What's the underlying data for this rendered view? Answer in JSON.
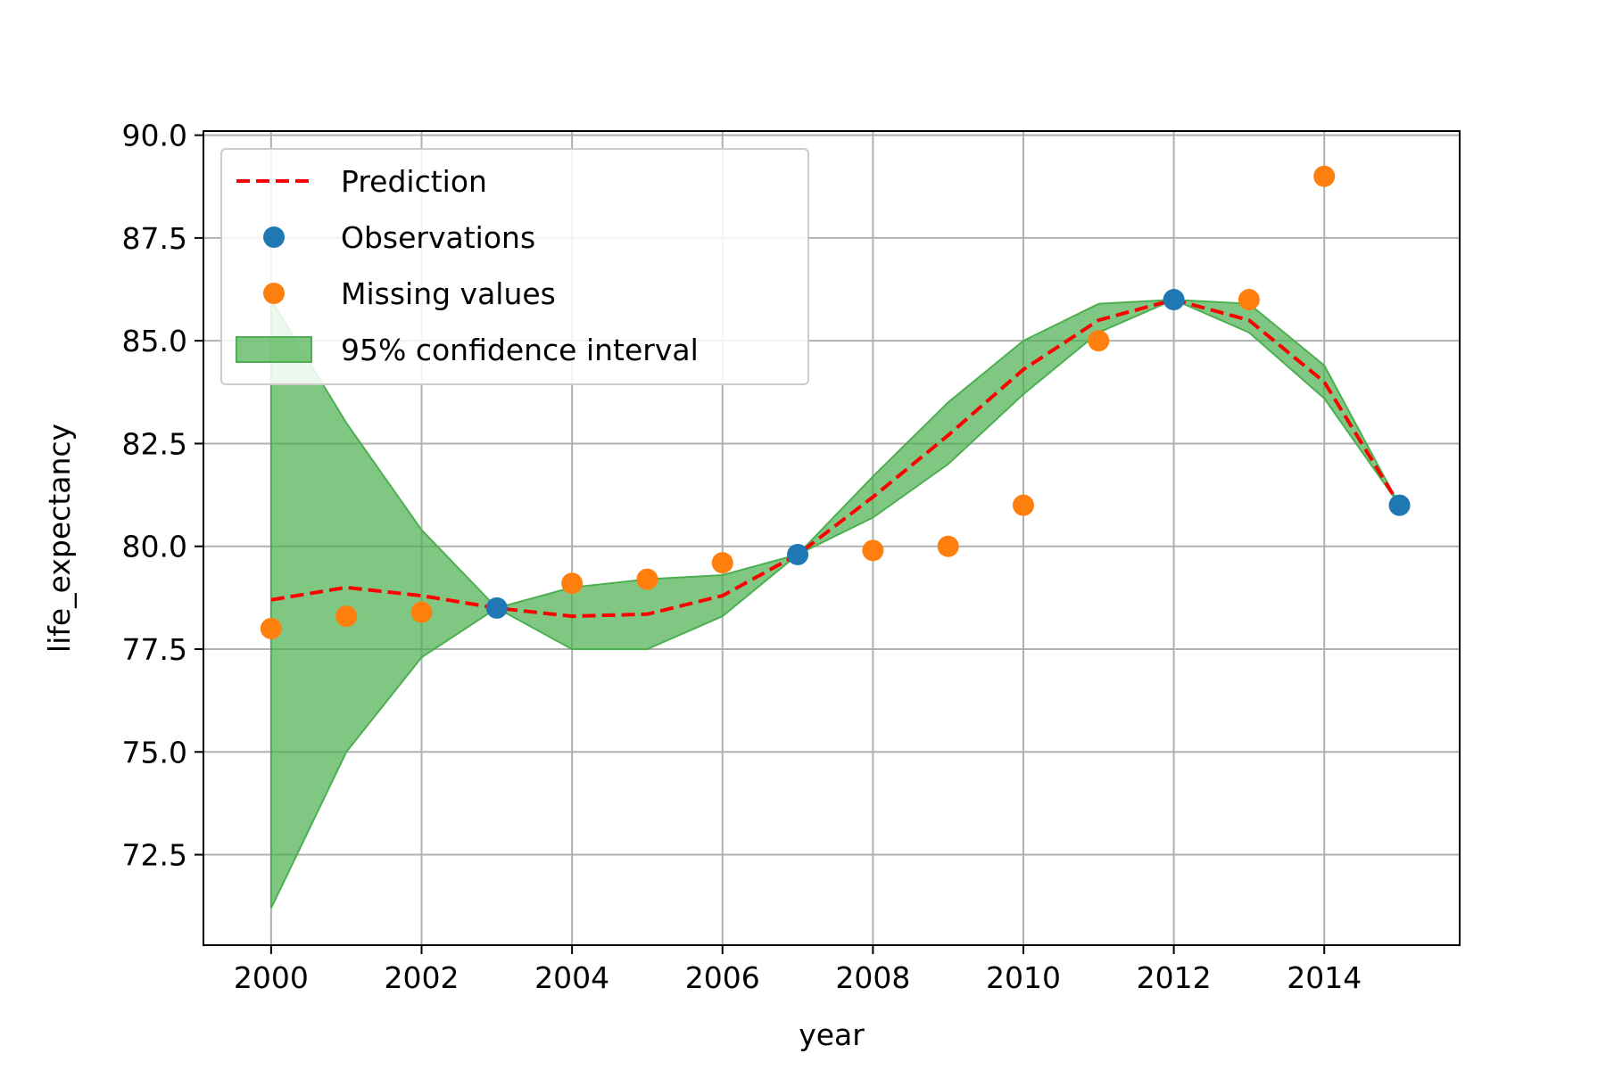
{
  "chart_data": {
    "type": "line",
    "title": "",
    "xlabel": "year",
    "ylabel": "life_expectancy",
    "xlim": [
      1999.1,
      2015.8
    ],
    "ylim": [
      70.3,
      90.1
    ],
    "x_ticks": [
      2000,
      2002,
      2004,
      2006,
      2008,
      2010,
      2012,
      2014
    ],
    "x_tick_labels": [
      "2000",
      "2002",
      "2004",
      "2006",
      "2008",
      "2010",
      "2012",
      "2014"
    ],
    "y_ticks": [
      72.5,
      75.0,
      77.5,
      80.0,
      82.5,
      85.0,
      87.5,
      90.0
    ],
    "y_tick_labels": [
      "72.5",
      "75.0",
      "77.5",
      "80.0",
      "82.5",
      "85.0",
      "87.5",
      "90.0"
    ],
    "grid": true,
    "legend_position": "top-left",
    "legend": [
      {
        "label": "Prediction",
        "kind": "dashed-line",
        "color": "#ff0000"
      },
      {
        "label": "Observations",
        "kind": "marker",
        "color": "#1f77b4"
      },
      {
        "label": "Missing values",
        "kind": "marker",
        "color": "#ff7f0e"
      },
      {
        "label": "95% confidence interval",
        "kind": "patch",
        "color": "#4caf50"
      }
    ],
    "series": [
      {
        "name": "95% confidence interval",
        "kind": "band",
        "color": "#4caf50",
        "x": [
          2000,
          2001,
          2002,
          2003,
          2004,
          2005,
          2006,
          2007,
          2008,
          2009,
          2010,
          2011,
          2012,
          2013,
          2014,
          2015
        ],
        "lower": [
          71.2,
          75.0,
          77.3,
          78.5,
          77.5,
          77.5,
          78.3,
          79.8,
          80.7,
          82.0,
          83.7,
          85.2,
          86.0,
          85.2,
          83.6,
          81.0
        ],
        "upper": [
          86.0,
          83.0,
          80.4,
          78.5,
          79.0,
          79.2,
          79.3,
          79.8,
          81.7,
          83.5,
          85.0,
          85.9,
          86.0,
          85.9,
          84.4,
          81.0
        ]
      },
      {
        "name": "Prediction",
        "kind": "line",
        "color": "#ff0000",
        "x": [
          2000,
          2001,
          2002,
          2003,
          2004,
          2005,
          2006,
          2007,
          2008,
          2009,
          2010,
          2011,
          2012,
          2013,
          2014,
          2015
        ],
        "values": [
          78.7,
          79.0,
          78.8,
          78.5,
          78.3,
          78.35,
          78.8,
          79.8,
          81.2,
          82.7,
          84.3,
          85.5,
          86.0,
          85.5,
          84.0,
          81.0
        ]
      },
      {
        "name": "Observations",
        "kind": "scatter",
        "color": "#1f77b4",
        "x": [
          2003,
          2007,
          2012,
          2015
        ],
        "values": [
          78.5,
          79.8,
          86.0,
          81.0
        ]
      },
      {
        "name": "Missing values",
        "kind": "scatter",
        "color": "#ff7f0e",
        "x": [
          2000,
          2001,
          2002,
          2004,
          2005,
          2006,
          2008,
          2009,
          2010,
          2011,
          2013,
          2014
        ],
        "values": [
          78.0,
          78.3,
          78.4,
          79.1,
          79.2,
          79.6,
          79.9,
          80.0,
          81.0,
          85.0,
          86.0,
          89.0
        ]
      }
    ]
  }
}
